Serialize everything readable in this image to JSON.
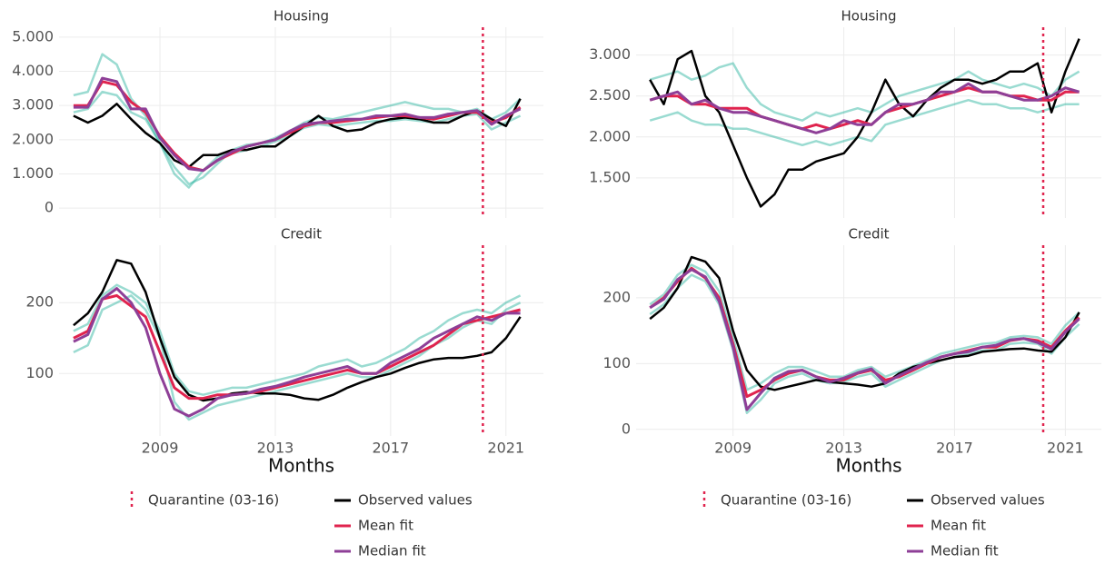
{
  "chart_data": [
    {
      "type": "line",
      "title": "Housing",
      "x": [
        2006,
        2006.5,
        2007,
        2007.5,
        2008,
        2008.5,
        2009,
        2009.5,
        2010,
        2010.5,
        2011,
        2011.5,
        2012,
        2012.5,
        2013,
        2013.5,
        2014,
        2014.5,
        2015,
        2015.5,
        2016,
        2016.5,
        2017,
        2017.5,
        2018,
        2018.5,
        2019,
        2019.5,
        2020,
        2020.5,
        2021,
        2021.5
      ],
      "series": [
        {
          "name": "Observed values",
          "color": "#000000",
          "values": [
            2700,
            2500,
            2700,
            3050,
            2600,
            2200,
            1900,
            1400,
            1200,
            1550,
            1550,
            1700,
            1700,
            1800,
            1800,
            2100,
            2400,
            2700,
            2400,
            2250,
            2300,
            2500,
            2600,
            2650,
            2600,
            2500,
            2500,
            2700,
            2850,
            2600,
            2400,
            3200
          ]
        },
        {
          "name": "Mean fit",
          "color": "#e0234e",
          "values": [
            3000,
            3000,
            3700,
            3600,
            3100,
            2800,
            2100,
            1600,
            1200,
            1100,
            1400,
            1600,
            1800,
            1900,
            2000,
            2200,
            2400,
            2500,
            2500,
            2550,
            2600,
            2650,
            2700,
            2700,
            2650,
            2600,
            2700,
            2800,
            2800,
            2500,
            2650,
            2950
          ]
        },
        {
          "name": "Median fit",
          "color": "#8e3f97",
          "values": [
            2950,
            2950,
            3800,
            3700,
            2900,
            2900,
            2050,
            1550,
            1150,
            1100,
            1400,
            1650,
            1800,
            1900,
            2000,
            2250,
            2450,
            2500,
            2550,
            2600,
            2600,
            2700,
            2700,
            2750,
            2650,
            2650,
            2750,
            2800,
            2850,
            2450,
            2700,
            2900
          ]
        }
      ],
      "ensemble_color": "#1fb09a",
      "ensemble": [
        [
          3300,
          3400,
          4500,
          4200,
          3200,
          2700,
          1900,
          1200,
          700,
          900,
          1300,
          1700,
          1850,
          1900,
          2050,
          2250,
          2500,
          2650,
          2600,
          2700,
          2800,
          2900,
          3000,
          3100,
          3000,
          2900,
          2900,
          2800,
          2900,
          2600,
          2800,
          3200
        ],
        [
          2800,
          2900,
          3400,
          3300,
          2800,
          2600,
          1900,
          1000,
          600,
          1100,
          1500,
          1600,
          1700,
          1800,
          1950,
          2100,
          2350,
          2450,
          2400,
          2450,
          2500,
          2550,
          2550,
          2600,
          2550,
          2500,
          2600,
          2700,
          2750,
          2300,
          2500,
          2700
        ]
      ],
      "vline": {
        "x": 2020.2,
        "label": "Quarantine (03-16)",
        "color": "#e0234e"
      },
      "xlim": [
        2005.5,
        2022.3
      ],
      "xticks": [
        2009,
        2013,
        2017,
        2021
      ],
      "ylim": [
        -290,
        5290
      ],
      "yticks": [
        0,
        {
          "value": 1000,
          "label": "1.000"
        },
        {
          "value": 2000,
          "label": "2.000"
        },
        {
          "value": 3000,
          "label": "3.000"
        },
        {
          "value": 4000,
          "label": "4.000"
        },
        {
          "value": 5000,
          "label": "5.000"
        }
      ]
    },
    {
      "type": "line",
      "title": "Housing",
      "x": [
        2006,
        2006.5,
        2007,
        2007.5,
        2008,
        2008.5,
        2009,
        2009.5,
        2010,
        2010.5,
        2011,
        2011.5,
        2012,
        2012.5,
        2013,
        2013.5,
        2014,
        2014.5,
        2015,
        2015.5,
        2016,
        2016.5,
        2017,
        2017.5,
        2018,
        2018.5,
        2019,
        2019.5,
        2020,
        2020.5,
        2021,
        2021.5
      ],
      "series": [
        {
          "name": "Observed values",
          "color": "#000000",
          "values": [
            2700,
            2400,
            2950,
            3050,
            2500,
            2300,
            1900,
            1500,
            1150,
            1300,
            1600,
            1600,
            1700,
            1750,
            1800,
            2000,
            2300,
            2700,
            2400,
            2250,
            2450,
            2600,
            2700,
            2700,
            2650,
            2700,
            2800,
            2800,
            2900,
            2300,
            2800,
            3200
          ]
        },
        {
          "name": "Mean fit",
          "color": "#e0234e",
          "values": [
            2450,
            2500,
            2500,
            2400,
            2400,
            2350,
            2350,
            2350,
            2250,
            2200,
            2150,
            2100,
            2150,
            2100,
            2150,
            2200,
            2150,
            2300,
            2350,
            2400,
            2450,
            2500,
            2550,
            2600,
            2550,
            2550,
            2500,
            2500,
            2450,
            2450,
            2550,
            2550
          ]
        },
        {
          "name": "Median fit",
          "color": "#8e3f97",
          "values": [
            2450,
            2500,
            2550,
            2400,
            2450,
            2350,
            2300,
            2300,
            2250,
            2200,
            2150,
            2100,
            2050,
            2100,
            2200,
            2150,
            2150,
            2300,
            2400,
            2400,
            2450,
            2550,
            2550,
            2650,
            2550,
            2550,
            2500,
            2450,
            2450,
            2500,
            2600,
            2550
          ]
        }
      ],
      "ensemble_color": "#1fb09a",
      "ensemble": [
        [
          2700,
          2750,
          2800,
          2700,
          2750,
          2850,
          2900,
          2600,
          2400,
          2300,
          2250,
          2200,
          2300,
          2250,
          2300,
          2350,
          2300,
          2400,
          2500,
          2550,
          2600,
          2650,
          2700,
          2800,
          2700,
          2650,
          2600,
          2650,
          2600,
          2500,
          2700,
          2800
        ],
        [
          2200,
          2250,
          2300,
          2200,
          2150,
          2150,
          2100,
          2100,
          2050,
          2000,
          1950,
          1900,
          1950,
          1900,
          1950,
          2000,
          1950,
          2150,
          2200,
          2250,
          2300,
          2350,
          2400,
          2450,
          2400,
          2400,
          2350,
          2350,
          2300,
          2350,
          2400,
          2400
        ]
      ],
      "vline": {
        "x": 2020.2,
        "label": "Quarantine (03-16)",
        "color": "#e0234e"
      },
      "xlim": [
        2005.5,
        2022.3
      ],
      "xticks": [
        2009,
        2013,
        2017,
        2021
      ],
      "ylim": [
        1010,
        3340
      ],
      "yticks": [
        {
          "value": 1500,
          "label": "1.500"
        },
        {
          "value": 2000,
          "label": "2.000"
        },
        {
          "value": 2500,
          "label": "2.500"
        },
        {
          "value": 3000,
          "label": "3.000"
        }
      ]
    },
    {
      "type": "line",
      "title": "Credit",
      "xlabel": "Months",
      "x": [
        2006,
        2006.5,
        2007,
        2007.5,
        2008,
        2008.5,
        2009,
        2009.5,
        2010,
        2010.5,
        2011,
        2011.5,
        2012,
        2012.5,
        2013,
        2013.5,
        2014,
        2014.5,
        2015,
        2015.5,
        2016,
        2016.5,
        2017,
        2017.5,
        2018,
        2018.5,
        2019,
        2019.5,
        2020,
        2020.5,
        2021,
        2021.5
      ],
      "series": [
        {
          "name": "Observed values",
          "color": "#000000",
          "values": [
            168,
            185,
            215,
            260,
            255,
            215,
            150,
            95,
            70,
            62,
            65,
            72,
            74,
            72,
            72,
            70,
            65,
            63,
            70,
            80,
            88,
            95,
            100,
            108,
            115,
            120,
            122,
            122,
            125,
            130,
            150,
            180
          ]
        },
        {
          "name": "Mean fit",
          "color": "#e0234e",
          "values": [
            150,
            160,
            205,
            210,
            195,
            180,
            130,
            80,
            65,
            65,
            70,
            70,
            72,
            75,
            80,
            85,
            90,
            95,
            100,
            105,
            100,
            100,
            110,
            120,
            130,
            140,
            155,
            170,
            175,
            180,
            185,
            190
          ]
        },
        {
          "name": "Median fit",
          "color": "#8e3f97",
          "values": [
            145,
            155,
            205,
            220,
            200,
            165,
            100,
            50,
            40,
            50,
            65,
            70,
            72,
            78,
            82,
            88,
            95,
            100,
            105,
            110,
            100,
            100,
            115,
            125,
            135,
            150,
            160,
            170,
            180,
            175,
            185,
            185
          ]
        }
      ],
      "ensemble_color": "#1fb09a",
      "ensemble": [
        [
          130,
          140,
          190,
          200,
          210,
          190,
          150,
          60,
          35,
          45,
          55,
          60,
          65,
          70,
          75,
          80,
          85,
          90,
          95,
          100,
          95,
          95,
          105,
          115,
          125,
          140,
          150,
          165,
          175,
          170,
          190,
          200
        ],
        [
          160,
          170,
          210,
          225,
          215,
          200,
          160,
          100,
          75,
          70,
          75,
          80,
          80,
          85,
          90,
          95,
          100,
          110,
          115,
          120,
          110,
          115,
          125,
          135,
          150,
          160,
          175,
          185,
          190,
          185,
          200,
          210
        ]
      ],
      "vline": {
        "x": 2020.2,
        "label": "Quarantine (03-16)",
        "color": "#e0234e"
      },
      "xlim": [
        2005.5,
        2022.3
      ],
      "xticks": [
        2009,
        2013,
        2017,
        2021
      ],
      "ylim": [
        12,
        281
      ],
      "yticks": [
        100,
        200
      ]
    },
    {
      "type": "line",
      "title": "Credit",
      "xlabel": "Months",
      "x": [
        2006,
        2006.5,
        2007,
        2007.5,
        2008,
        2008.5,
        2009,
        2009.5,
        2010,
        2010.5,
        2011,
        2011.5,
        2012,
        2012.5,
        2013,
        2013.5,
        2014,
        2014.5,
        2015,
        2015.5,
        2016,
        2016.5,
        2017,
        2017.5,
        2018,
        2018.5,
        2019,
        2019.5,
        2020,
        2020.5,
        2021,
        2021.5
      ],
      "series": [
        {
          "name": "Observed values",
          "color": "#000000",
          "values": [
            168,
            185,
            215,
            262,
            255,
            230,
            150,
            90,
            65,
            60,
            65,
            70,
            75,
            72,
            70,
            68,
            65,
            70,
            85,
            95,
            100,
            105,
            110,
            112,
            118,
            120,
            122,
            123,
            120,
            118,
            140,
            178
          ]
        },
        {
          "name": "Mean fit",
          "color": "#e0234e",
          "values": [
            185,
            200,
            225,
            245,
            230,
            200,
            130,
            50,
            60,
            75,
            85,
            90,
            80,
            75,
            75,
            85,
            90,
            75,
            80,
            90,
            100,
            110,
            115,
            120,
            125,
            125,
            135,
            138,
            135,
            125,
            150,
            170
          ]
        },
        {
          "name": "Median fit",
          "color": "#8e3f97",
          "values": [
            185,
            198,
            228,
            243,
            232,
            195,
            125,
            30,
            55,
            78,
            88,
            90,
            80,
            72,
            78,
            86,
            92,
            70,
            82,
            92,
            102,
            110,
            115,
            118,
            125,
            128,
            136,
            138,
            132,
            122,
            148,
            168
          ]
        }
      ],
      "ensemble_color": "#1fb09a",
      "ensemble": [
        [
          175,
          190,
          215,
          235,
          225,
          190,
          120,
          25,
          45,
          70,
          80,
          85,
          75,
          70,
          72,
          80,
          85,
          65,
          75,
          85,
          95,
          105,
          110,
          115,
          120,
          120,
          130,
          132,
          130,
          115,
          140,
          160
        ],
        [
          190,
          205,
          235,
          250,
          240,
          210,
          140,
          60,
          70,
          85,
          95,
          95,
          88,
          80,
          80,
          90,
          95,
          80,
          88,
          96,
          105,
          115,
          120,
          125,
          130,
          132,
          140,
          142,
          140,
          130,
          158,
          178
        ]
      ],
      "vline": {
        "x": 2020.2,
        "label": "Quarantine (03-16)",
        "color": "#e0234e"
      },
      "xlim": [
        2005.5,
        2022.3
      ],
      "xticks": [
        2009,
        2013,
        2017,
        2021
      ],
      "ylim": [
        -10,
        280
      ],
      "yticks": [
        0,
        100,
        200
      ]
    }
  ]
}
